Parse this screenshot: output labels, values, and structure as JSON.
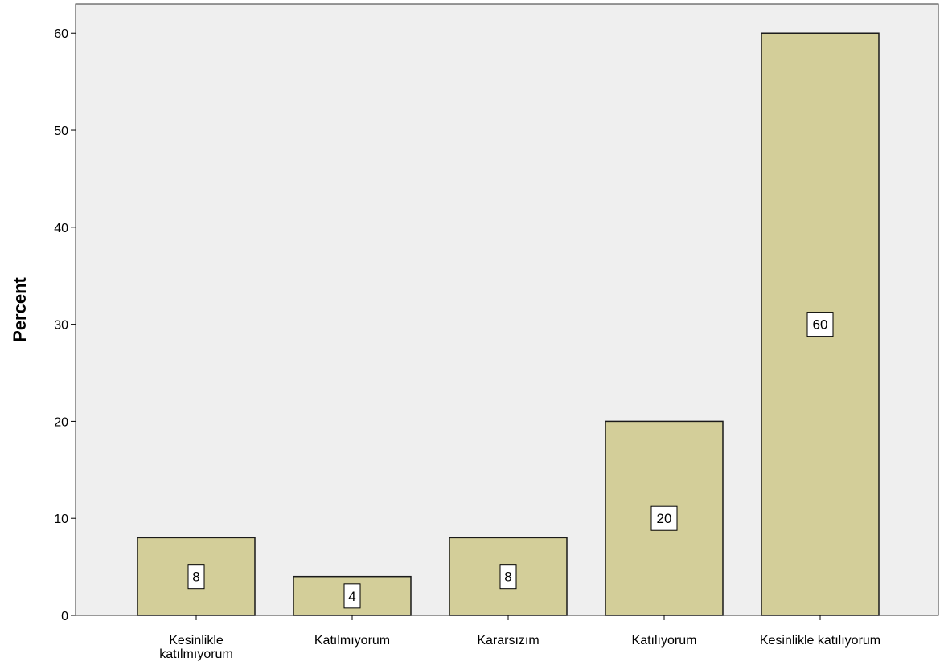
{
  "chart_data": {
    "type": "bar",
    "categories": [
      "Kesinlikle\nkatılmıyorum",
      "Katılmıyorum",
      "Kararsızım",
      "Katılıyorum",
      "Kesinlikle katılıyorum"
    ],
    "values": [
      8,
      4,
      8,
      20,
      60
    ],
    "data_labels": [
      "8",
      "4",
      "8",
      "20",
      "60"
    ],
    "ylabel": "Percent",
    "ylim": [
      0,
      63
    ],
    "yticks": [
      0,
      10,
      20,
      30,
      40,
      50,
      60
    ],
    "grid": false,
    "colors": {
      "plot_background": "#efefef",
      "bar_fill": "#d3ce99",
      "bar_stroke": "#1a1a1a",
      "label_box_fill": "#ffffff"
    }
  }
}
